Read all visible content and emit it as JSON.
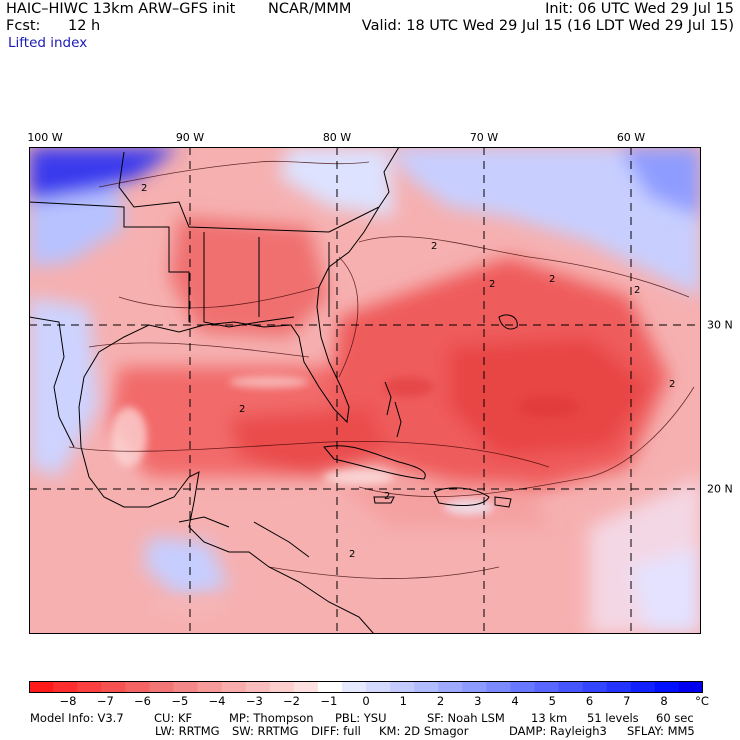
{
  "header": {
    "title_left": "HAIC–HIWC 13km ARW–GFS init",
    "title_center": "NCAR/MMM",
    "init": "Init: 06 UTC Wed 29 Jul 15",
    "fcst_label": "Fcst:",
    "fcst_value": "12 h",
    "valid": "Valid: 18 UTC Wed 29 Jul 15 (16 LDT Wed 29 Jul 15)",
    "field": "Lifted index"
  },
  "map": {
    "lon_labels": [
      "100 W",
      "90 W",
      "80 W",
      "70 W",
      "60 W"
    ],
    "lat_labels": [
      "30 N",
      "20 N"
    ],
    "contour_label": "2",
    "colors": {
      "warm_deep": "#e8393c",
      "warm_mid": "#f06a6a",
      "warm_light": "#f8a6a6",
      "cool_light": "#c9d2ff",
      "cool_deep": "#1010e0"
    }
  },
  "colorbar": {
    "labels": [
      "−8",
      "−7",
      "−6",
      "−5",
      "−4",
      "−3",
      "−2",
      "−1",
      "0",
      "1",
      "2",
      "3",
      "4",
      "5",
      "6",
      "7",
      "8"
    ],
    "unit": "°C",
    "colors": [
      "#ff1a1a",
      "#ff2d2d",
      "#fa4040",
      "#f65252",
      "#f46464",
      "#f27676",
      "#f48888",
      "#f69a9a",
      "#f8acac",
      "#fabdbd",
      "#fccece",
      "#fde0e0",
      "#ffffff",
      "#e6e9ff",
      "#d4d9ff",
      "#c2caff",
      "#b1bbff",
      "#9faaff",
      "#8d9aff",
      "#7b8aff",
      "#6979ff",
      "#5867ff",
      "#4656ff",
      "#3445ff",
      "#2334ff",
      "#1122ff",
      "#0010ff",
      "#0000f0"
    ]
  },
  "model_info": {
    "line1": [
      "Model Info: V3.7",
      "CU: KF",
      "MP: Thompson",
      "PBL: YSU",
      "SF: Noah LSM",
      "13 km",
      "51 levels",
      "60 sec"
    ],
    "line2": [
      "LW: RRTMG",
      "SW: RRTMG",
      "DIFF: full",
      "KM: 2D Smagor",
      "DAMP: Rayleigh3",
      "SFLAY: MM5"
    ]
  }
}
